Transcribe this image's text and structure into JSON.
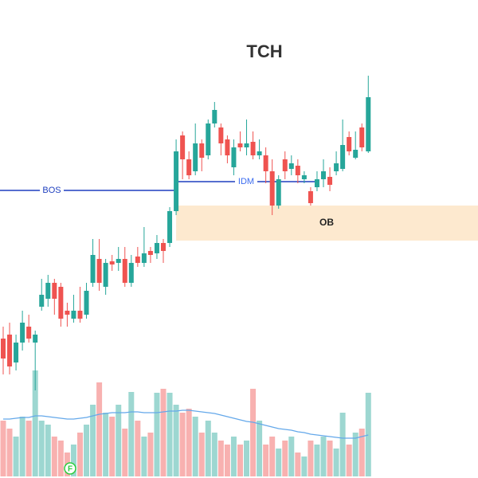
{
  "chart_data": {
    "type": "candlestick",
    "title": "TCH",
    "open": [
      175,
      180,
      145,
      170,
      190,
      170,
      215,
      225,
      245,
      240,
      210,
      200,
      210,
      205,
      245,
      275,
      240,
      272,
      270,
      275,
      245,
      278,
      270,
      285,
      282,
      295,
      295,
      335,
      430,
      400,
      385,
      420,
      405,
      445,
      440,
      425,
      390,
      420,
      415,
      422,
      405,
      405,
      385,
      342,
      400,
      388,
      392,
      375,
      360,
      365,
      375,
      378,
      385,
      388,
      428,
      402,
      440,
      410
    ],
    "high": [
      190,
      195,
      180,
      210,
      205,
      185,
      250,
      255,
      250,
      245,
      220,
      230,
      240,
      245,
      300,
      300,
      275,
      280,
      290,
      290,
      280,
      290,
      315,
      290,
      305,
      300,
      340,
      425,
      435,
      410,
      445,
      425,
      450,
      472,
      445,
      430,
      425,
      435,
      450,
      435,
      425,
      415,
      400,
      380,
      410,
      405,
      400,
      385,
      365,
      385,
      400,
      390,
      410,
      450,
      435,
      435,
      445,
      505
    ],
    "low": [
      130,
      130,
      135,
      160,
      170,
      110,
      210,
      215,
      205,
      190,
      190,
      195,
      195,
      200,
      240,
      235,
      230,
      260,
      260,
      240,
      240,
      265,
      265,
      270,
      275,
      270,
      290,
      330,
      375,
      375,
      380,
      385,
      400,
      440,
      405,
      395,
      380,
      410,
      405,
      400,
      400,
      370,
      330,
      338,
      375,
      380,
      370,
      370,
      342,
      360,
      365,
      360,
      380,
      385,
      405,
      400,
      410,
      408
    ],
    "close": [
      150,
      140,
      170,
      195,
      175,
      180,
      230,
      245,
      225,
      200,
      205,
      210,
      200,
      235,
      280,
      245,
      270,
      268,
      275,
      245,
      270,
      270,
      282,
      280,
      295,
      285,
      335,
      410,
      400,
      380,
      420,
      402,
      445,
      462,
      420,
      405,
      415,
      415,
      420,
      405,
      410,
      385,
      342,
      375,
      385,
      395,
      380,
      380,
      345,
      375,
      385,
      368,
      395,
      418,
      410,
      412,
      415,
      478
    ],
    "ylim": [
      0,
      600
    ],
    "up_color": "#26a69a",
    "down_color": "#ef5350",
    "volume": [
      70,
      60,
      50,
      75,
      70,
      133,
      70,
      65,
      50,
      45,
      30,
      40,
      55,
      65,
      90,
      118,
      80,
      75,
      90,
      60,
      106,
      70,
      50,
      55,
      105,
      110,
      105,
      90,
      80,
      85,
      75,
      55,
      70,
      55,
      45,
      40,
      50,
      40,
      45,
      110,
      70,
      40,
      50,
      35,
      45,
      50,
      30,
      25,
      45,
      40,
      50,
      45,
      35,
      80,
      40,
      55,
      60,
      105
    ],
    "volume_ma": [
      72,
      72,
      73,
      74,
      74,
      76,
      76,
      75,
      74,
      73,
      72,
      72,
      73,
      74,
      76,
      78,
      79,
      80,
      80,
      80,
      81,
      81,
      80,
      80,
      80,
      81,
      82,
      82,
      83,
      83,
      82,
      81,
      80,
      79,
      77,
      75,
      73,
      71,
      69,
      68,
      66,
      64,
      62,
      60,
      59,
      58,
      56,
      55,
      53,
      52,
      51,
      50,
      49,
      48,
      48,
      48,
      50,
      52
    ],
    "volume_ylim": [
      0,
      240
    ],
    "ma_color": "#64a8ea",
    "bos": {
      "label": "BOS",
      "level": 361
    },
    "idm": {
      "label": "IDM",
      "level": 372
    },
    "order_block": {
      "label": "OB",
      "top": 342,
      "bottom": 298
    },
    "flag_label": "F"
  }
}
